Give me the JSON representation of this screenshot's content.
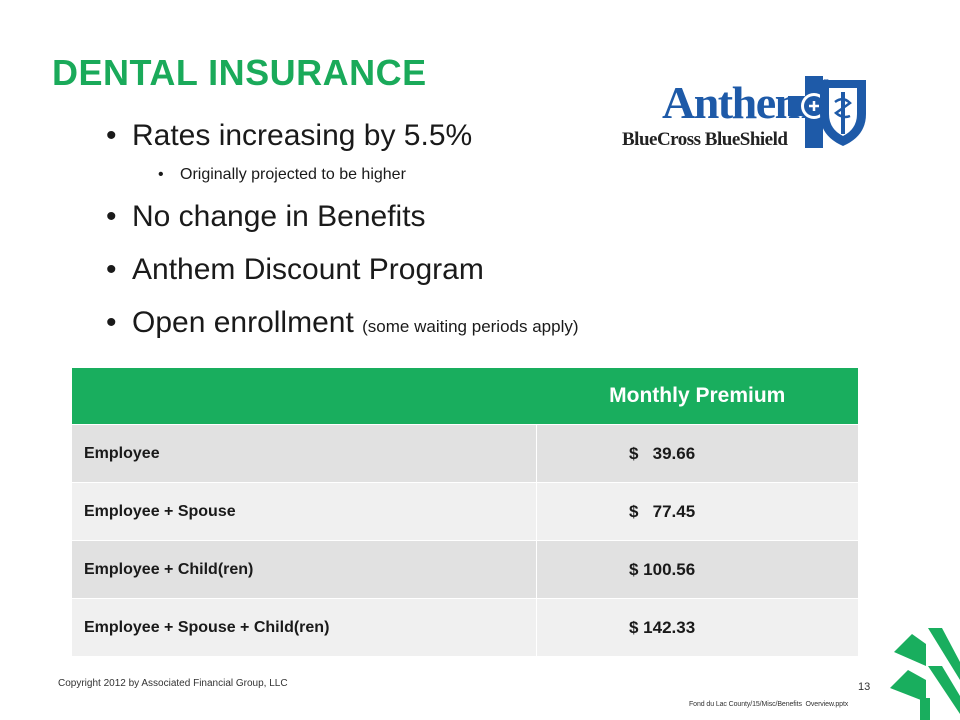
{
  "slide": {
    "title": "DENTAL INSURANCE",
    "accent_color": "#1aaa5a"
  },
  "bullets": [
    {
      "text": "Rates increasing by 5.5%"
    },
    {
      "text": "Originally projected to be higher",
      "level": 2
    },
    {
      "text": "No change in Benefits"
    },
    {
      "text": "Anthem Discount Program"
    },
    {
      "text": "Open enrollment",
      "note": "(some waiting periods apply)"
    }
  ],
  "logo": {
    "brand": "Anthem.",
    "registered": "®",
    "sub": "BlueCross BlueShield",
    "color": "#1e5aa8"
  },
  "premium_table": {
    "header_empty": "",
    "header": "Monthly Premium",
    "header_color": "#19ae5e",
    "rows": [
      {
        "label": "Employee",
        "amount": "$   39.66"
      },
      {
        "label": "Employee + Spouse",
        "amount": "$   77.45"
      },
      {
        "label": "Employee + Child(ren)",
        "amount": "$ 100.56"
      },
      {
        "label": "Employee + Spouse + Child(ren)",
        "amount": "$ 142.33"
      }
    ]
  },
  "footer": {
    "copyright": "Copyright 2012 by Associated Financial Group, LLC",
    "page_number": "13",
    "file_path": "Fond du Lac County/15/Misc/Benefits  Overview.pptx",
    "logo_icon": "tree-logo-icon"
  }
}
